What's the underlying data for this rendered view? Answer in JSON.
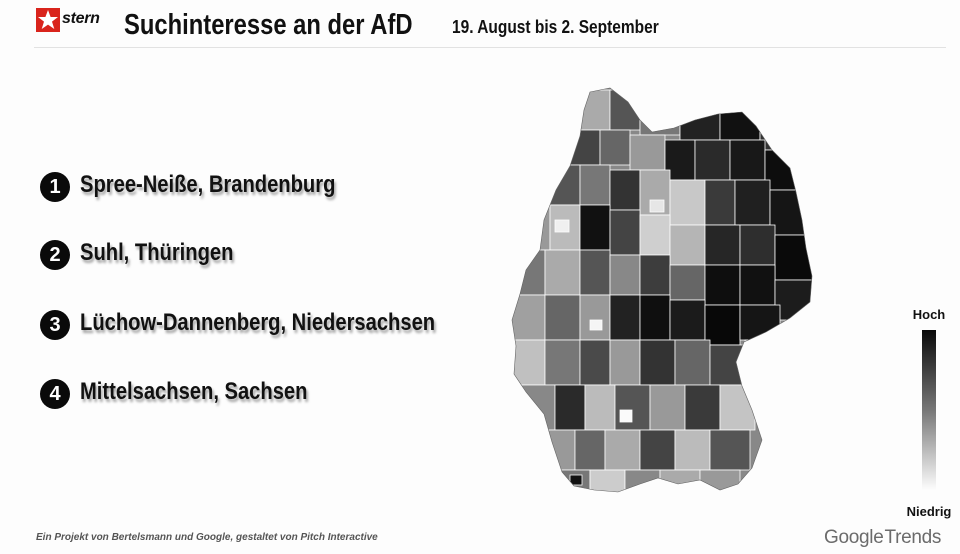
{
  "header": {
    "logo_text": "stern",
    "title": "Suchinteresse an der AfD",
    "subtitle": "19. August bis 2. September"
  },
  "ranking": [
    {
      "number": "1",
      "label": "Spree-Neiße, Brandenburg"
    },
    {
      "number": "2",
      "label": "Suhl, Thüringen"
    },
    {
      "number": "3",
      "label": "Lüchow-Dannenberg, Niedersachsen"
    },
    {
      "number": "4",
      "label": "Mittelsachsen, Sachsen"
    }
  ],
  "map": {
    "region": "Deutschland (Landkreise)",
    "shading": "grayscale",
    "high_color": "#0a0a0a",
    "low_color": "#fdfdfd"
  },
  "legend": {
    "high_label": "Hoch",
    "low_label": "Niedrig"
  },
  "footer": {
    "credit": "Ein Projekt von Bertelsmann und Google, gestaltet von Pitch Interactive",
    "brand_google": "Google",
    "brand_trends": "Trends"
  },
  "colors": {
    "logo_red": "#d9241c",
    "text": "#111111",
    "brand_gray": "#6b6b6b"
  }
}
